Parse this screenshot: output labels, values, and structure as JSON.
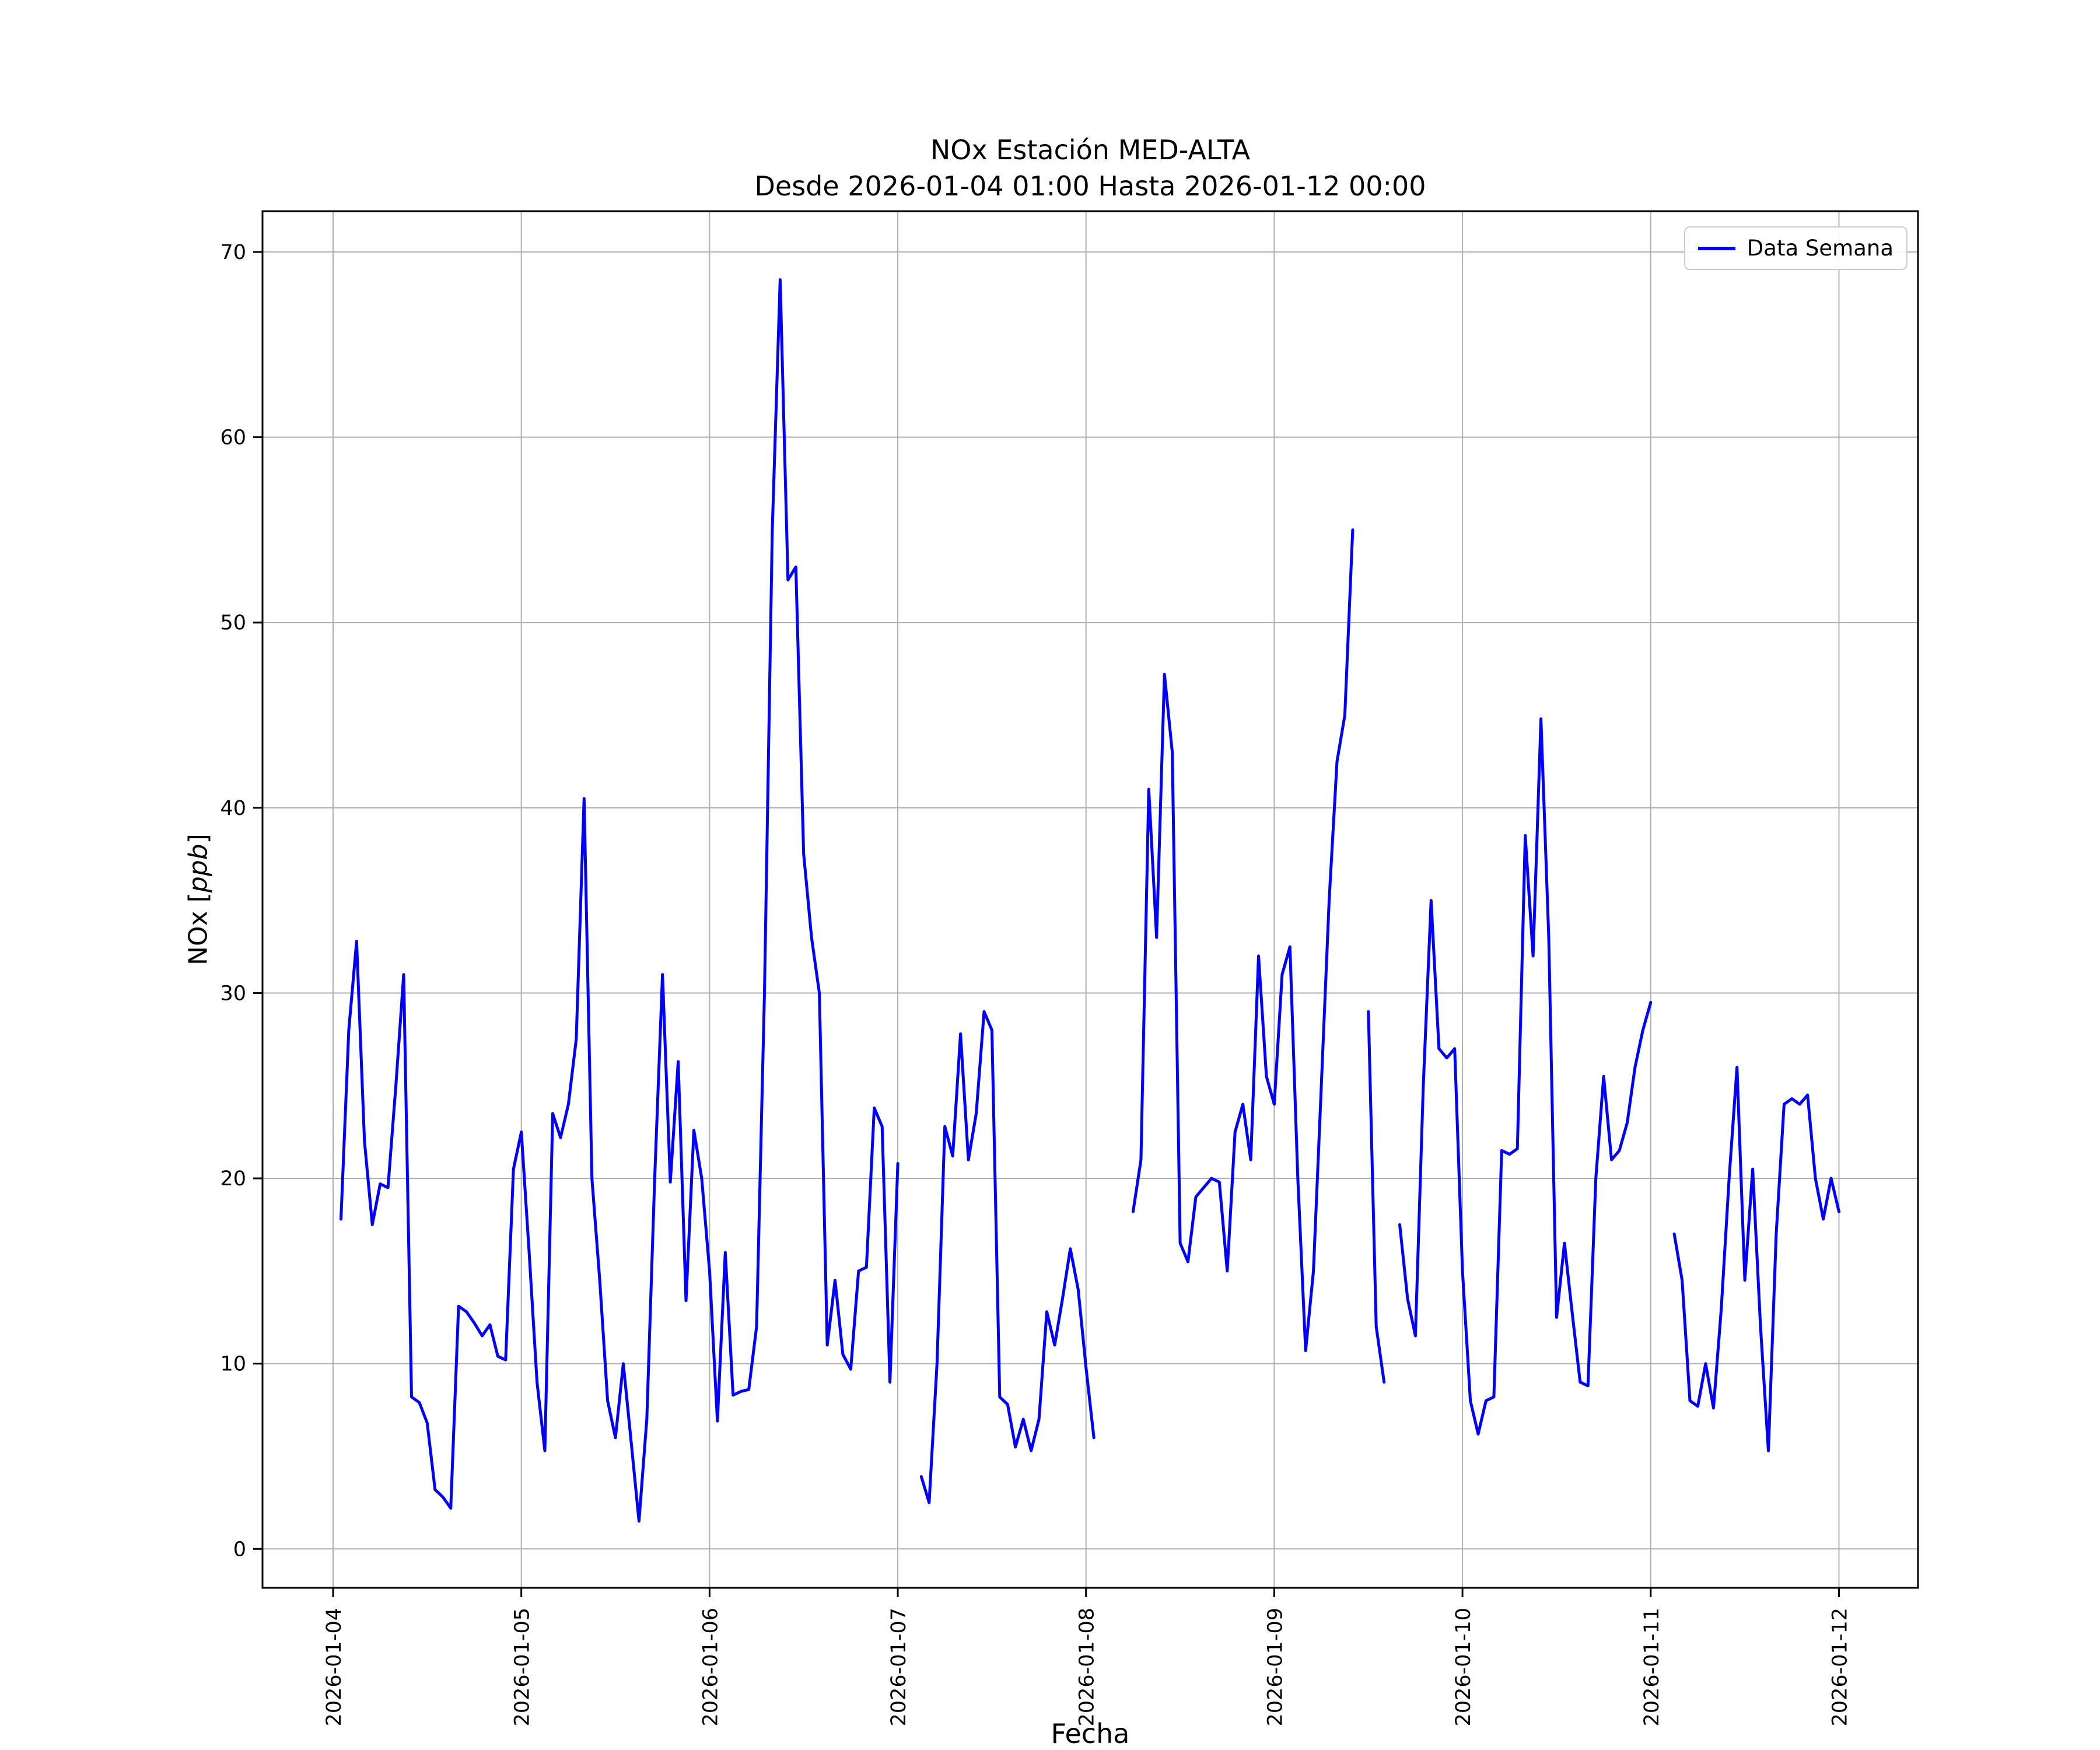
{
  "chart_data": {
    "type": "line",
    "title_line1": "NOx Estación MED-ALTA",
    "title_line2": "Desde 2026-01-04 01:00 Hasta 2026-01-12 00:00",
    "xlabel": "Fecha",
    "ylabel": {
      "pre": "NOx [",
      "math": "ppb",
      "post": "]"
    },
    "legend_label": "Data Semana",
    "line_color": "#0000ff",
    "grid_color": "#b0b0b0",
    "grid": true,
    "legend_position": "upper right",
    "x_start": "2026-01-04 01:00",
    "x_freq": "hourly",
    "xtick_labels": [
      "2026-01-04",
      "2026-01-05",
      "2026-01-06",
      "2026-01-07",
      "2026-01-08",
      "2026-01-09",
      "2026-01-10",
      "2026-01-11",
      "2026-01-12"
    ],
    "xtick_day_offsets": [
      0,
      1,
      2,
      3,
      4,
      5,
      6,
      7,
      8
    ],
    "yticks": [
      0,
      10,
      20,
      30,
      40,
      50,
      60,
      70
    ],
    "xlim_days": [
      -0.375,
      8.42
    ],
    "ylim": [
      -2.1,
      72.2
    ],
    "series": [
      {
        "name": "Data Semana",
        "values": [
          17.8,
          28.0,
          32.8,
          22.0,
          17.5,
          19.7,
          19.5,
          25.0,
          31.0,
          8.2,
          7.9,
          6.8,
          3.2,
          2.8,
          2.2,
          13.1,
          12.8,
          12.2,
          11.5,
          12.1,
          10.4,
          10.2,
          20.5,
          22.5,
          16.0,
          9.0,
          5.3,
          23.5,
          22.2,
          24.0,
          27.5,
          40.5,
          20.0,
          14.5,
          8.0,
          6.0,
          10.0,
          5.8,
          1.5,
          7.0,
          20.0,
          31.0,
          19.8,
          26.3,
          13.4,
          22.6,
          20.0,
          15.0,
          6.9,
          16.0,
          8.3,
          8.5,
          8.6,
          12.0,
          30.0,
          55.0,
          68.5,
          52.3,
          53.0,
          37.5,
          33.0,
          30.0,
          11.0,
          14.5,
          10.5,
          9.7,
          15.0,
          15.2,
          23.8,
          22.8,
          9.0,
          20.8,
          null,
          null,
          3.9,
          2.5,
          10.0,
          22.8,
          21.2,
          27.8,
          21.0,
          23.5,
          29.0,
          28.0,
          8.2,
          7.8,
          5.5,
          7.0,
          5.3,
          7.0,
          12.8,
          11.0,
          13.5,
          16.2,
          14.0,
          9.8,
          6.0,
          null,
          null,
          null,
          null,
          18.2,
          21.0,
          41.0,
          33.0,
          47.2,
          43.0,
          16.5,
          15.5,
          19.0,
          19.5,
          20.0,
          19.8,
          15.0,
          22.5,
          24.0,
          21.0,
          32.0,
          25.5,
          24.0,
          31.0,
          32.5,
          20.0,
          10.7,
          15.0,
          25.0,
          35.0,
          42.5,
          45.0,
          55.0,
          null,
          29.0,
          12.0,
          9.0,
          null,
          17.5,
          13.5,
          11.5,
          25.0,
          35.0,
          27.0,
          26.5,
          27.0,
          15.0,
          8.0,
          6.2,
          8.0,
          8.2,
          21.5,
          21.3,
          21.6,
          38.5,
          32.0,
          44.8,
          33.0,
          12.5,
          16.5,
          12.7,
          9.0,
          8.8,
          20.0,
          25.5,
          21.0,
          21.5,
          23.0,
          26.0,
          28.0,
          29.5,
          null,
          null,
          17.0,
          14.5,
          8.0,
          7.7,
          10.0,
          7.6,
          13.0,
          20.0,
          26.0,
          14.5,
          20.5,
          12.0,
          5.3,
          17.0,
          24.0,
          24.3,
          24.0,
          24.5,
          20.0,
          17.8,
          20.0,
          18.2
        ]
      }
    ]
  }
}
